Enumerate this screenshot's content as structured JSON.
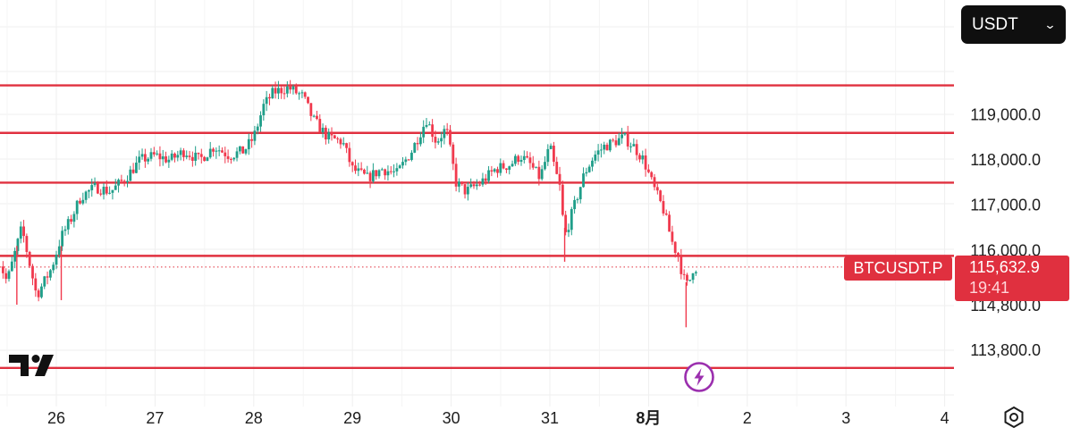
{
  "currency_selector": {
    "value": "USDT"
  },
  "symbol_tag": "BTCUSDT.P",
  "price_tag": {
    "price": "115,632.9",
    "countdown": "19:41"
  },
  "chart_data": {
    "type": "candlestick",
    "symbol": "BTCUSDT.P",
    "quote_currency": "USDT",
    "x_axis": {
      "tick_labels": [
        "26",
        "27",
        "28",
        "29",
        "30",
        "31",
        "8月",
        "2",
        "3",
        "4"
      ],
      "bold_labels": [
        "8月"
      ],
      "range": [
        "Jul 25 (late)",
        "Aug 4"
      ]
    },
    "y_axis": {
      "tick_labels": [
        "119,000.0",
        "118,000.0",
        "117,000.0",
        "116,000.0",
        "114,800.0",
        "113,800.0"
      ],
      "tick_values": [
        119000,
        118000,
        117000,
        116000,
        114800,
        113800
      ],
      "range": [
        113400,
        121800
      ],
      "position": "right"
    },
    "horizontal_lines": [
      {
        "value": 119650,
        "color": "#e0303f"
      },
      {
        "value": 118600,
        "color": "#e0303f"
      },
      {
        "value": 117500,
        "color": "#e0303f"
      },
      {
        "value": 115880,
        "color": "#e0303f"
      },
      {
        "value": 113400,
        "color": "#e0303f"
      }
    ],
    "current_price": 115632.9,
    "current_price_line": "dotted",
    "grid": true,
    "colors": {
      "up": "#1f9e89",
      "down": "#f0394d",
      "level": "#e0303f"
    },
    "close_path": [
      [
        25.4,
        115900
      ],
      [
        25.5,
        115300
      ],
      [
        25.65,
        116500
      ],
      [
        25.8,
        115000
      ],
      [
        25.95,
        115600
      ],
      [
        26.05,
        116300
      ],
      [
        26.15,
        116700
      ],
      [
        26.25,
        117200
      ],
      [
        26.4,
        117400
      ],
      [
        26.55,
        117300
      ],
      [
        26.7,
        117600
      ],
      [
        26.85,
        118000
      ],
      [
        27.0,
        118100
      ],
      [
        27.15,
        118000
      ],
      [
        27.3,
        118200
      ],
      [
        27.45,
        118000
      ],
      [
        27.6,
        118300
      ],
      [
        27.75,
        118100
      ],
      [
        27.9,
        118200
      ],
      [
        28.0,
        118500
      ],
      [
        28.1,
        119200
      ],
      [
        28.2,
        119500
      ],
      [
        28.35,
        119600
      ],
      [
        28.5,
        119400
      ],
      [
        28.6,
        118900
      ],
      [
        28.75,
        118500
      ],
      [
        28.9,
        118400
      ],
      [
        29.0,
        117800
      ],
      [
        29.15,
        117600
      ],
      [
        29.3,
        117800
      ],
      [
        29.45,
        117700
      ],
      [
        29.6,
        118200
      ],
      [
        29.75,
        118900
      ],
      [
        29.85,
        118400
      ],
      [
        29.95,
        118700
      ],
      [
        30.05,
        117500
      ],
      [
        30.15,
        117300
      ],
      [
        30.3,
        117500
      ],
      [
        30.45,
        117800
      ],
      [
        30.6,
        117900
      ],
      [
        30.7,
        118100
      ],
      [
        30.8,
        117900
      ],
      [
        30.9,
        117600
      ],
      [
        31.0,
        118300
      ],
      [
        31.05,
        117800
      ],
      [
        31.1,
        117400
      ],
      [
        31.15,
        116300
      ],
      [
        31.25,
        117000
      ],
      [
        31.35,
        117700
      ],
      [
        31.45,
        118100
      ],
      [
        31.55,
        118300
      ],
      [
        31.65,
        118400
      ],
      [
        31.75,
        118500
      ],
      [
        31.85,
        118300
      ],
      [
        31.95,
        118000
      ],
      [
        32.05,
        117400
      ],
      [
        32.15,
        116900
      ],
      [
        32.25,
        116100
      ],
      [
        32.3,
        115900
      ],
      [
        32.35,
        115400
      ],
      [
        32.4,
        115200
      ],
      [
        32.45,
        115600
      ],
      [
        32.5,
        115632.9
      ]
    ]
  }
}
